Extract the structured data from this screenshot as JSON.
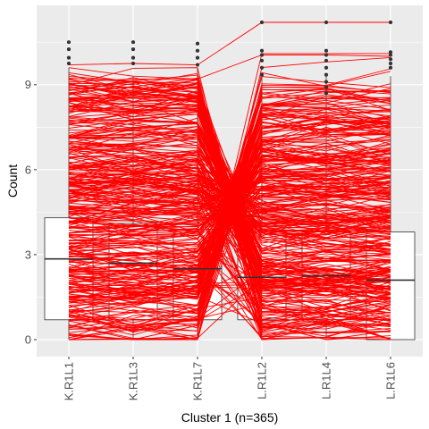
{
  "chart_data": {
    "type": "box_with_parallel_lines",
    "title": "",
    "xlabel": "Cluster 1 (n=365)",
    "ylabel": "Count",
    "ylim": [
      -0.6,
      11.8
    ],
    "yticks": [
      0,
      3,
      6,
      9
    ],
    "categories": [
      "K.R1L1",
      "K.R1L3",
      "K.R1L7",
      "L.R1L2",
      "L.R1L4",
      "L.R1L6"
    ],
    "boxes": [
      {
        "category": "K.R1L1",
        "min": 0,
        "q1": 0.7,
        "median": 2.85,
        "q3": 4.3,
        "max": 9.6,
        "outliers": [
          9.75,
          9.95,
          10.25,
          10.5
        ]
      },
      {
        "category": "K.R1L3",
        "min": 0,
        "q1": 0.7,
        "median": 2.7,
        "q3": 4.1,
        "max": 9.3,
        "outliers": [
          9.75,
          9.95,
          10.25,
          10.5
        ]
      },
      {
        "category": "K.R1L7",
        "min": 0,
        "q1": 0.7,
        "median": 2.5,
        "q3": 3.9,
        "max": 9.6,
        "outliers": [
          9.7,
          9.95,
          10.2,
          10.45
        ]
      },
      {
        "category": "L.R1L2",
        "min": 0,
        "q1": 0.7,
        "median": 2.2,
        "q3": 3.8,
        "max": 9.3,
        "outliers": [
          9.35,
          9.6,
          9.85,
          10.05,
          10.2,
          11.2
        ]
      },
      {
        "category": "L.R1L4",
        "min": 0,
        "q1": 0.7,
        "median": 2.25,
        "q3": 3.8,
        "max": 9.3,
        "outliers": [
          8.7,
          8.9,
          9.1,
          9.35,
          9.6,
          9.85,
          10.05,
          10.2,
          11.2
        ]
      },
      {
        "category": "L.R1L6",
        "min": 0,
        "q1": 0.0,
        "median": 2.1,
        "q3": 3.8,
        "max": 9.3,
        "outliers": [
          9.6,
          9.75,
          9.9,
          10.05,
          10.15,
          11.2
        ]
      }
    ],
    "line_count": 365,
    "line_color": "#ff0000",
    "grid": true,
    "legend": "none",
    "colors": {
      "panel_background": "#ebebeb",
      "grid_lines": "#ffffff",
      "box_outline": "#333333",
      "box_fill": "#ffffff",
      "outlier": "#333333"
    }
  }
}
